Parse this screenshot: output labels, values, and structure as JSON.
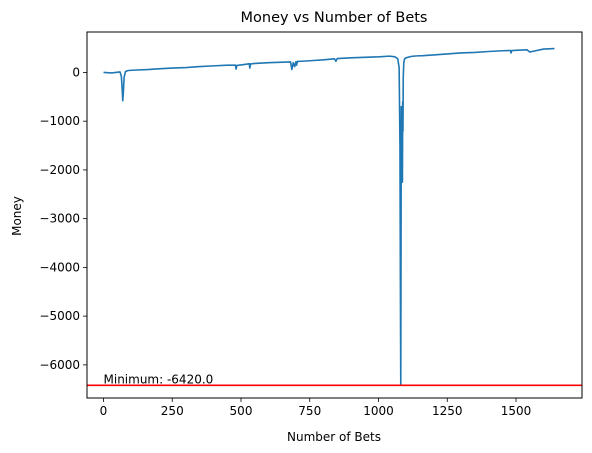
{
  "chart_data": {
    "type": "line",
    "title": "Money vs Number of Bets",
    "xlabel": "Number of Bets",
    "ylabel": "Money",
    "xlim": [
      -60,
      1740
    ],
    "ylim": [
      -6680,
      830
    ],
    "xticks": [
      0,
      250,
      500,
      750,
      1000,
      1250,
      1500
    ],
    "xtick_labels": [
      "0",
      "250",
      "500",
      "750",
      "1000",
      "1250",
      "1500"
    ],
    "yticks": [
      0,
      -1000,
      -2000,
      -3000,
      -4000,
      -5000,
      -6000
    ],
    "ytick_labels": [
      "0",
      "−1000",
      "−2000",
      "−3000",
      "−4000",
      "−5000",
      "−6000"
    ],
    "grid": false,
    "series": [
      {
        "color": "#1f77b4",
        "x": [
          0,
          30,
          60,
          65,
          68,
          70,
          72,
          75,
          80,
          90,
          120,
          160,
          200,
          250,
          300,
          350,
          400,
          450,
          480,
          482,
          485,
          500,
          520,
          530,
          532,
          535,
          550,
          600,
          650,
          680,
          685,
          690,
          695,
          700,
          702,
          705,
          720,
          750,
          800,
          840,
          845,
          850,
          900,
          950,
          1000,
          1040,
          1060,
          1070,
          1075,
          1078,
          1080,
          1081,
          1082,
          1083,
          1084,
          1085,
          1087,
          1088,
          1089,
          1090,
          1092,
          1095,
          1100,
          1120,
          1140,
          1160,
          1200,
          1250,
          1300,
          1350,
          1400,
          1450,
          1480,
          1482,
          1485,
          1500,
          1540,
          1550,
          1600,
          1640
        ],
        "y": [
          0,
          -10,
          10,
          -80,
          -350,
          -580,
          -420,
          -100,
          20,
          40,
          50,
          60,
          75,
          90,
          100,
          120,
          135,
          150,
          150,
          70,
          145,
          155,
          170,
          180,
          90,
          175,
          185,
          200,
          210,
          215,
          60,
          200,
          120,
          220,
          150,
          225,
          230,
          240,
          260,
          280,
          230,
          285,
          300,
          310,
          320,
          335,
          320,
          280,
          100,
          -1500,
          -5000,
          -6420,
          -3500,
          -700,
          -2000,
          -1300,
          -2250,
          -600,
          -1200,
          -100,
          200,
          280,
          300,
          330,
          340,
          345,
          360,
          380,
          400,
          410,
          430,
          445,
          450,
          400,
          450,
          455,
          465,
          420,
          480,
          490
        ]
      }
    ],
    "hlines": [
      {
        "y": -6420,
        "color": "#ff0000"
      }
    ],
    "annotations": [
      {
        "text": "Minimum: -6420.0",
        "x": 0,
        "y": -6380
      }
    ]
  }
}
